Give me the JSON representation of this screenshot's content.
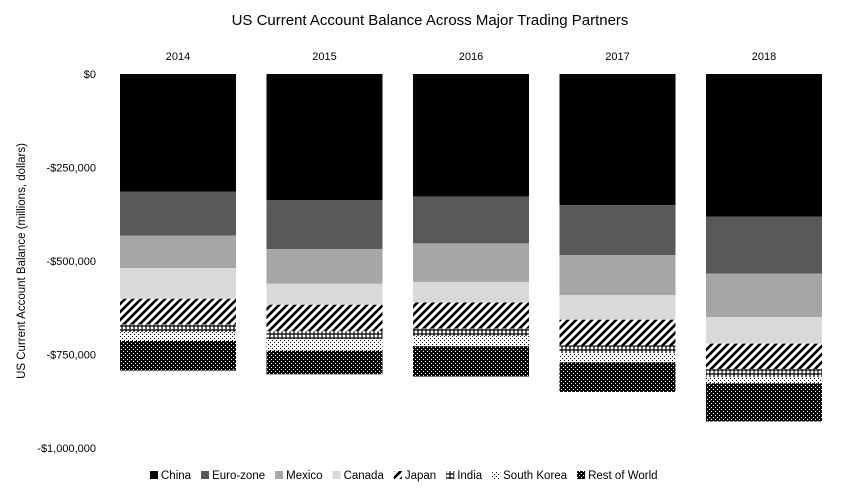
{
  "chart_data": {
    "type": "bar",
    "stacked": true,
    "title": "US Current  Account Balance Across Major Trading Partners",
    "xlabel": "",
    "ylabel": "US Current Account Balance (millions, dollars)",
    "categories": [
      "2014",
      "2015",
      "2016",
      "2017",
      "2018"
    ],
    "ylim": [
      -1000000,
      0
    ],
    "yticks": [
      0,
      -250000,
      -500000,
      -750000,
      -1000000
    ],
    "ytick_labels": [
      "$0",
      "-$250,000",
      "-$500,000",
      "-$750,000",
      "-$1,000,000"
    ],
    "x_axis_position": "top",
    "grid": false,
    "legend_position": "bottom",
    "series": [
      {
        "name": "China",
        "values": [
          -315000,
          -337000,
          -328000,
          -351000,
          -381000
        ],
        "color": "#000000",
        "pattern": "solid"
      },
      {
        "name": "Euro-zone",
        "values": [
          -117000,
          -131000,
          -125000,
          -133000,
          -153000
        ],
        "color": "#595959",
        "pattern": "solid"
      },
      {
        "name": "Mexico",
        "values": [
          -87000,
          -93000,
          -103000,
          -107000,
          -116000
        ],
        "color": "#a6a6a6",
        "pattern": "solid"
      },
      {
        "name": "Canada",
        "values": [
          -82000,
          -56000,
          -55000,
          -66000,
          -71000
        ],
        "color": "#d9d9d9",
        "pattern": "solid"
      },
      {
        "name": "Japan",
        "values": [
          -69000,
          -71000,
          -70000,
          -69000,
          -68000
        ],
        "color": "#000000",
        "pattern": "diagonal"
      },
      {
        "name": "India",
        "values": [
          -20000,
          -21000,
          -20000,
          -20000,
          -22000
        ],
        "color": "#000000",
        "pattern": "cross"
      },
      {
        "name": "South Korea",
        "values": [
          -24000,
          -31000,
          -27000,
          -25000,
          -16000
        ],
        "color": "#000000",
        "pattern": "dots"
      },
      {
        "name": "Rest of World",
        "values": [
          -79000,
          -63000,
          -81000,
          -79000,
          -102000
        ],
        "color": "#000000",
        "pattern": "dense-dots"
      }
    ]
  }
}
